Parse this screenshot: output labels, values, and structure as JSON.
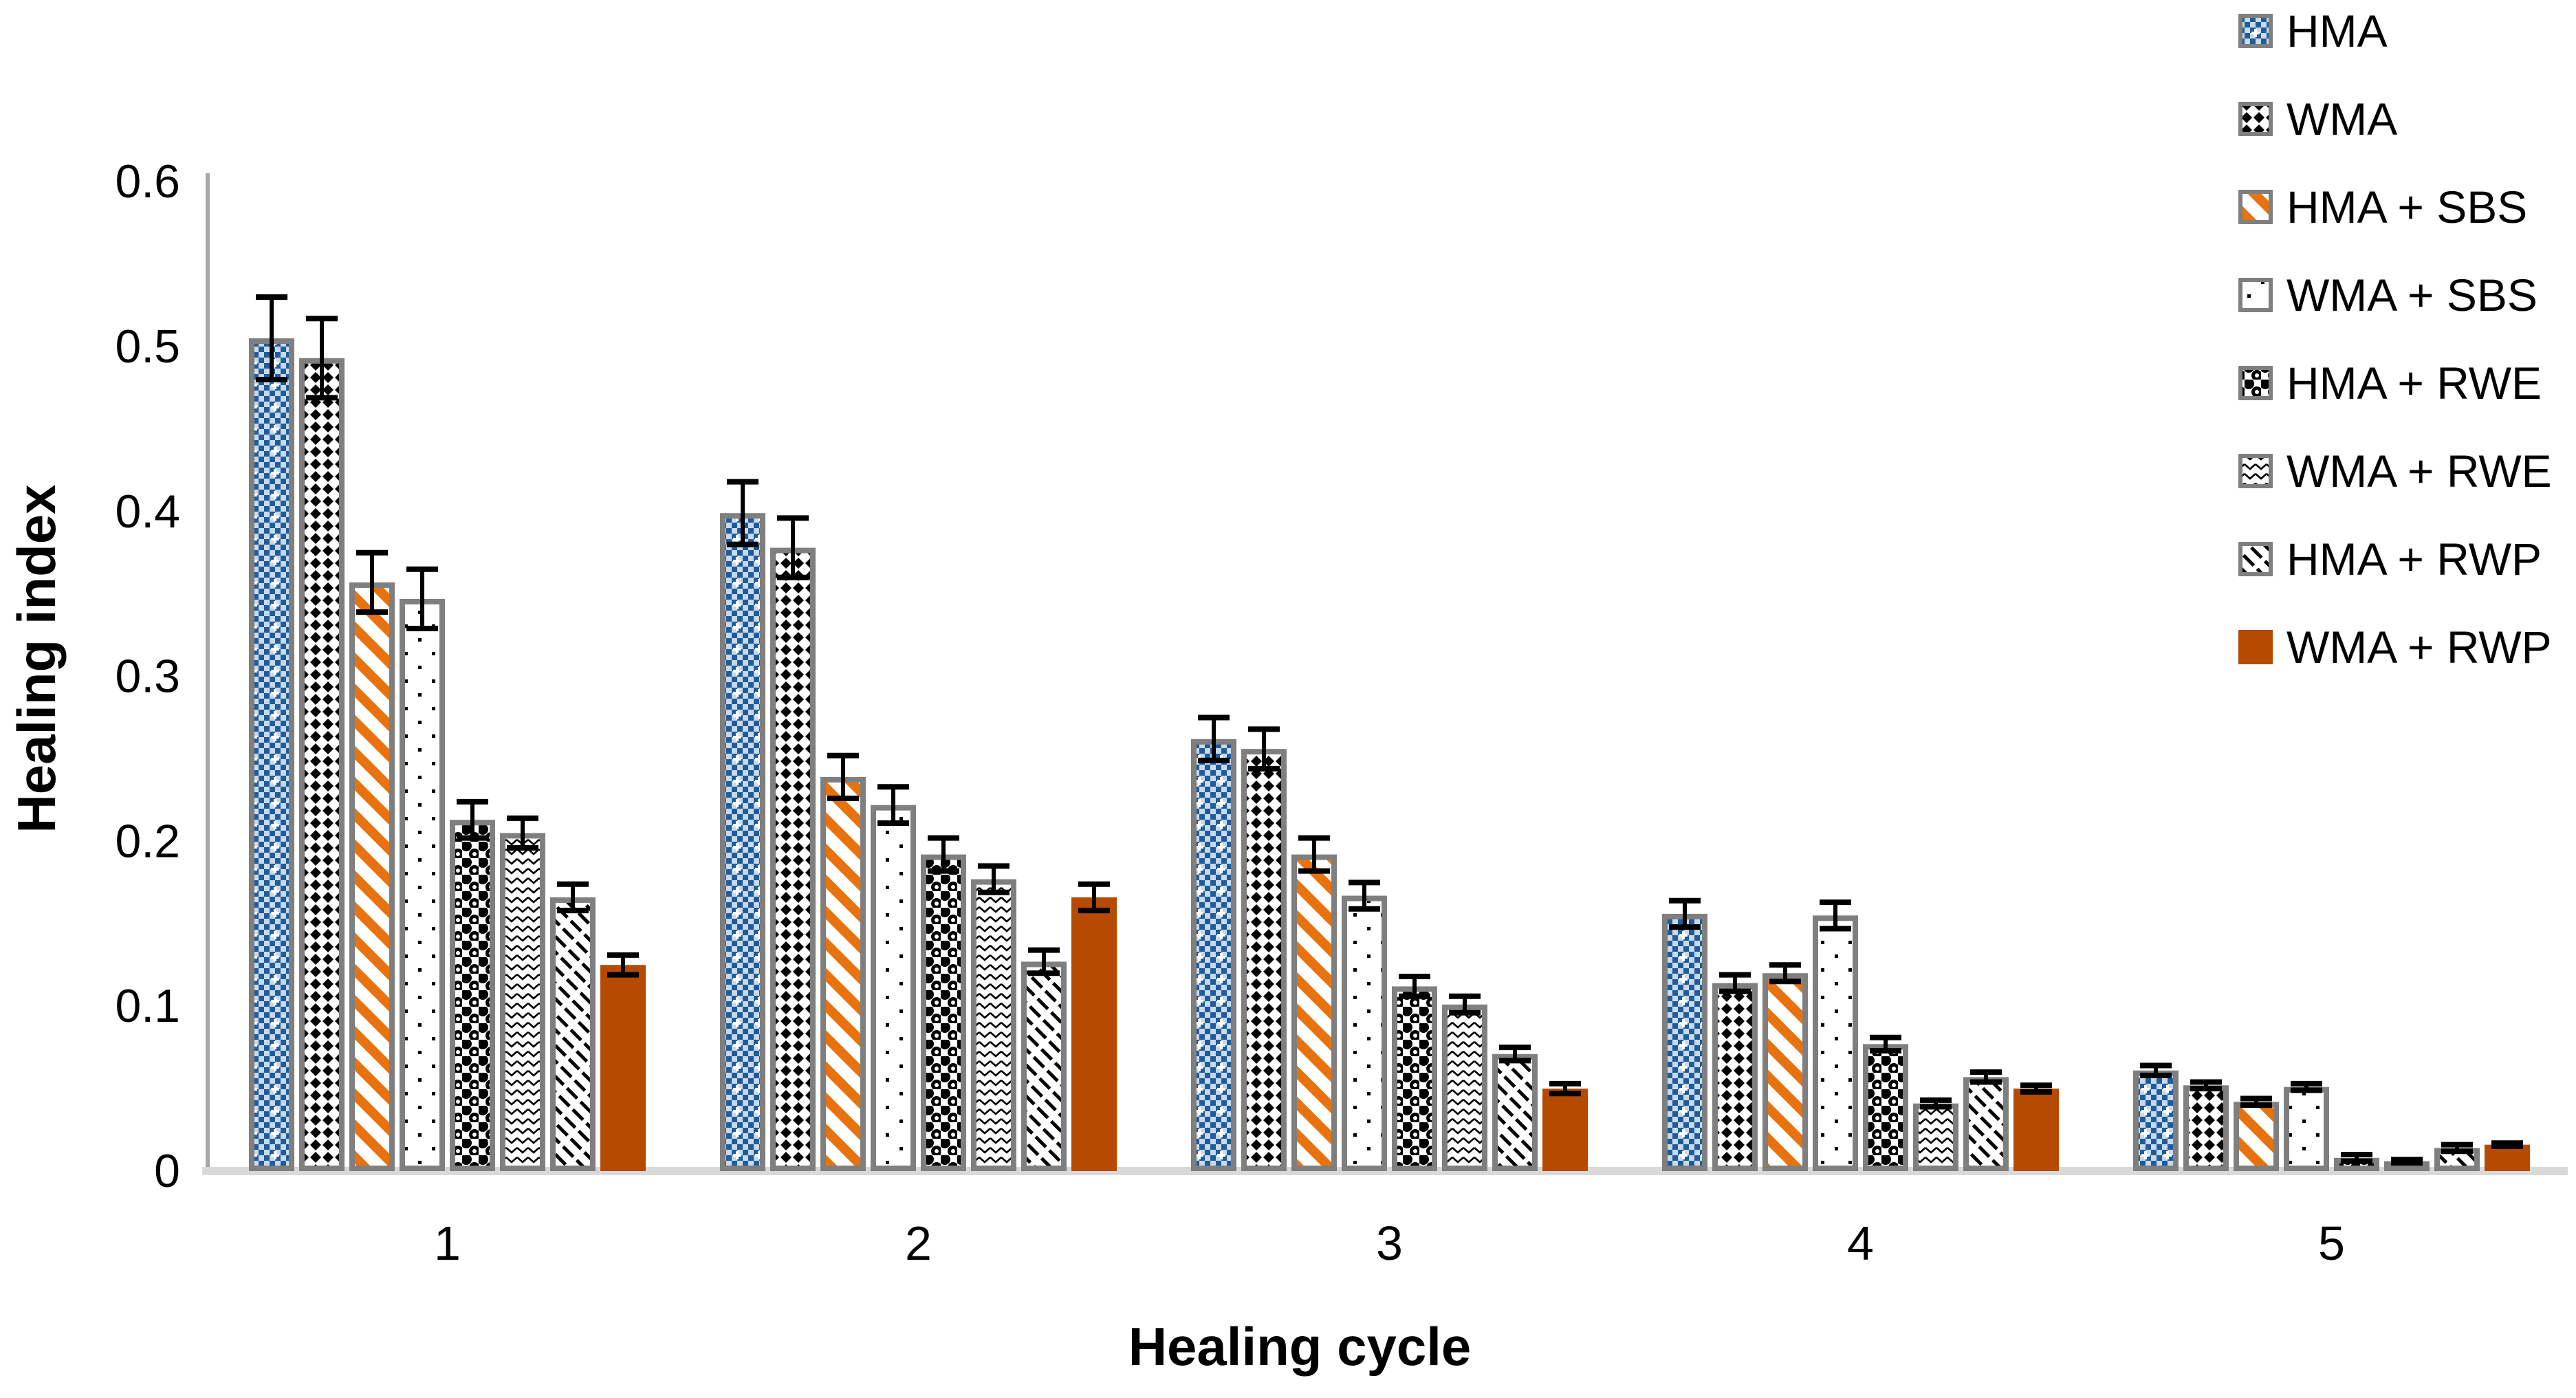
{
  "chart_data": {
    "type": "bar",
    "title": "",
    "xlabel": "Healing cycle",
    "ylabel": "Healing index",
    "categories": [
      "1",
      "2",
      "3",
      "4",
      "5"
    ],
    "ylim": [
      0,
      0.6
    ],
    "ytick_labels": [
      "0",
      "0.1",
      "0.2",
      "0.3",
      "0.4",
      "0.5",
      "0.6"
    ],
    "grid": "off",
    "legend_position": "top-right",
    "bar_outline_color": "#7F7F7F",
    "error_bar_color": "#000000",
    "axis_line_color": "#A6A6A6",
    "baseline_color": "#D9D9D9",
    "series": [
      {
        "name": "HMA",
        "pattern": "blue-checker",
        "color": "#1F5C99",
        "values": [
          0.505,
          0.399,
          0.262,
          0.156,
          0.061
        ],
        "errors": [
          0.025,
          0.019,
          0.013,
          0.008,
          0.003
        ]
      },
      {
        "name": "WMA",
        "pattern": "bw-checker",
        "color": "#000000",
        "values": [
          0.493,
          0.378,
          0.256,
          0.114,
          0.052
        ],
        "errors": [
          0.024,
          0.018,
          0.012,
          0.005,
          0.002
        ]
      },
      {
        "name": "HMA + SBS",
        "pattern": "orange-stripe",
        "color": "#E8730E",
        "values": [
          0.357,
          0.239,
          0.192,
          0.12,
          0.042
        ],
        "errors": [
          0.018,
          0.013,
          0.01,
          0.005,
          0.002
        ]
      },
      {
        "name": "WMA + SBS",
        "pattern": "dots",
        "color": "#000000",
        "values": [
          0.347,
          0.222,
          0.167,
          0.155,
          0.051
        ],
        "errors": [
          0.018,
          0.011,
          0.008,
          0.008,
          0.002
        ]
      },
      {
        "name": "HMA + RWE",
        "pattern": "balls",
        "color": "#000000",
        "values": [
          0.213,
          0.192,
          0.112,
          0.077,
          0.008
        ],
        "errors": [
          0.011,
          0.01,
          0.006,
          0.004,
          0.002
        ]
      },
      {
        "name": "WMA + RWE",
        "pattern": "zigzag",
        "color": "#000000",
        "values": [
          0.205,
          0.177,
          0.101,
          0.041,
          0.006
        ],
        "errors": [
          0.009,
          0.008,
          0.005,
          0.002,
          0.001
        ]
      },
      {
        "name": "HMA + RWP",
        "pattern": "thin-diagonal",
        "color": "#000000",
        "values": [
          0.166,
          0.127,
          0.071,
          0.057,
          0.014
        ],
        "errors": [
          0.008,
          0.007,
          0.004,
          0.003,
          0.002
        ]
      },
      {
        "name": "WMA + RWP",
        "pattern": "solid",
        "color": "#B54A00",
        "values": [
          0.125,
          0.166,
          0.05,
          0.05,
          0.016
        ],
        "errors": [
          0.006,
          0.008,
          0.003,
          0.002,
          0.001
        ]
      }
    ]
  }
}
